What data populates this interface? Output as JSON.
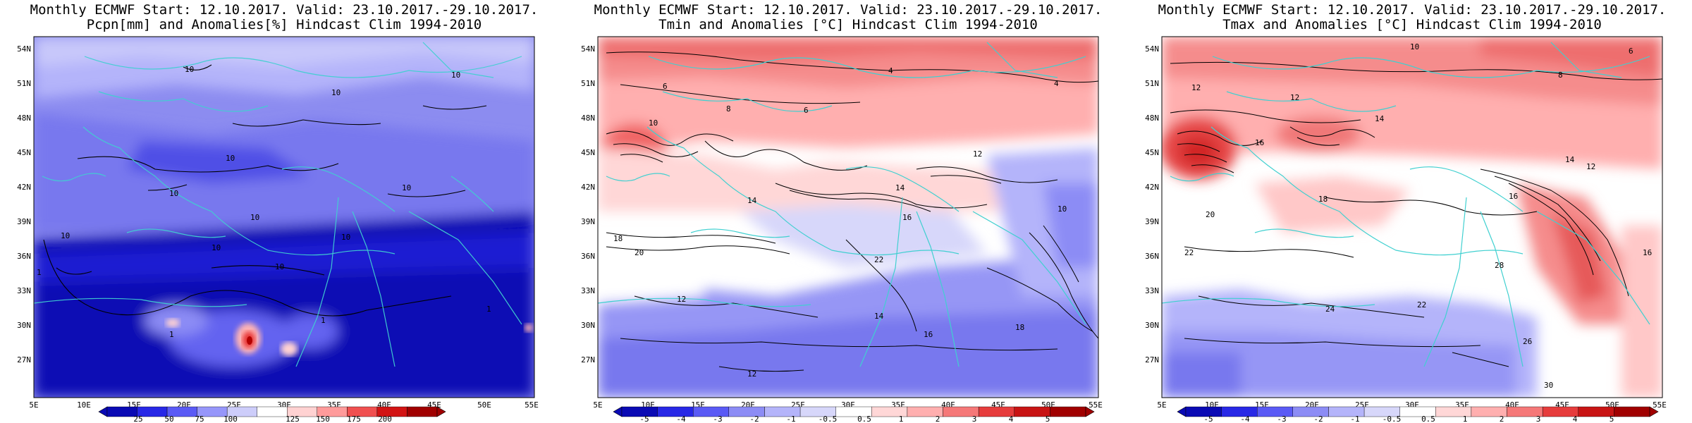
{
  "figure": {
    "panels": [
      {
        "id": "precip",
        "title_line1": "Monthly ECMWF Start: 12.10.2017. Valid: 23.10.2017.-29.10.2017.",
        "title_line2": "Pcpn[mm] and Anomalies[%] Hindcast Clim 1994-2010",
        "colorbar_ticks": [
          "25",
          "50",
          "75",
          "100",
          "125",
          "150",
          "175",
          "200"
        ],
        "colorbar_colors": [
          "#0a0ab4",
          "#2828e6",
          "#5a5af5",
          "#9696fa",
          "#cdcdfa",
          "#ffffff",
          "#ffd2d2",
          "#ff9b9b",
          "#f05050",
          "#d21414",
          "#a00000"
        ]
      },
      {
        "id": "tmin",
        "title_line1": "Monthly ECMWF Start: 12.10.2017. Valid: 23.10.2017.-29.10.2017.",
        "title_line2": "Tmin and Anomalies [°C] Hindcast Clim 1994-2010",
        "colorbar_ticks": [
          "-5",
          "-4",
          "-3",
          "-2",
          "-1",
          "-0.5",
          "0.5",
          "1",
          "2",
          "3",
          "4",
          "5"
        ],
        "colorbar_colors": [
          "#0a0ab4",
          "#2828e6",
          "#5a5af5",
          "#8c8cf5",
          "#b4b4fa",
          "#d7d7fa",
          "#ffffff",
          "#ffd7d7",
          "#ffafaf",
          "#f57878",
          "#e63c3c",
          "#c81414",
          "#a00000"
        ]
      },
      {
        "id": "tmax",
        "title_line1": "Monthly ECMWF Start: 12.10.2017. Valid: 23.10.2017.-29.10.2017.",
        "title_line2": "Tmax and Anomalies [°C] Hindcast Clim 1994-2010",
        "colorbar_ticks": [
          "-5",
          "-4",
          "-3",
          "-2",
          "-1",
          "-0.5",
          "0.5",
          "1",
          "2",
          "3",
          "4",
          "5"
        ],
        "colorbar_colors": [
          "#0a0ab4",
          "#2828e6",
          "#5a5af5",
          "#8c8cf5",
          "#b4b4fa",
          "#d7d7fa",
          "#ffffff",
          "#ffd7d7",
          "#ffafaf",
          "#f57878",
          "#e63c3c",
          "#c81414",
          "#a00000"
        ]
      }
    ],
    "lat_ticks": [
      "54N",
      "51N",
      "48N",
      "45N",
      "42N",
      "39N",
      "36N",
      "33N",
      "30N",
      "27N"
    ],
    "lon_ticks": [
      "5E",
      "10E",
      "15E",
      "20E",
      "25E",
      "30E",
      "35E",
      "40E",
      "45E",
      "50E",
      "55E"
    ],
    "contour_labels": {
      "precip": [
        "10",
        "10",
        "10",
        "10",
        "10",
        "10",
        "10",
        "10",
        "10",
        "10",
        "10",
        "1",
        "1",
        "1",
        "1"
      ],
      "tmin": [
        "4",
        "4",
        "6",
        "6",
        "8",
        "10",
        "12",
        "14",
        "14",
        "16",
        "18",
        "20",
        "22",
        "12",
        "14",
        "16",
        "18",
        "12",
        "10"
      ],
      "tmax": [
        "10",
        "12",
        "12",
        "14",
        "14",
        "16",
        "16",
        "18",
        "20",
        "22",
        "24",
        "26",
        "22",
        "28",
        "30",
        "8",
        "6",
        "12",
        "16"
      ]
    }
  }
}
